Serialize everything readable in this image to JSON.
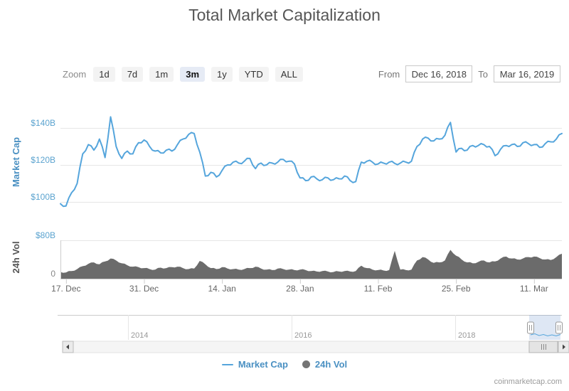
{
  "title": "Total Market Capitalization",
  "watermark": "coinmarketcap.com",
  "toolbar": {
    "zoom_label": "Zoom",
    "buttons": [
      "1d",
      "7d",
      "1m",
      "3m",
      "1y",
      "YTD",
      "ALL"
    ],
    "selected_button": "3m",
    "from_label": "From",
    "from_value": "Dec 16, 2018",
    "to_label": "To",
    "to_value": "Mar 16, 2019"
  },
  "legend": {
    "items": [
      {
        "label": "Market Cap",
        "marker": "line",
        "color": "#55a5dc"
      },
      {
        "label": "24h Vol",
        "marker": "circle",
        "color": "#757575"
      }
    ]
  },
  "navigator": {
    "year_labels": [
      "2014",
      "2016",
      "2018"
    ]
  },
  "colors": {
    "line": "#55a5dc",
    "volume_fill": "#6b6b6b",
    "axis_label_blue": "#5ba3cf",
    "market_cap_axis_title": "#4a90c2",
    "vol_axis_title": "#555555",
    "x_label_gray": "#666666",
    "grid": "#e6e6e6",
    "nav_selection": "#5b87c8",
    "selected_zoom_bg": "#e6ebf5"
  },
  "chart_data": [
    {
      "type": "line",
      "name": "Market Cap",
      "unit": "USD billions",
      "x_start": "Dec 16, 2018",
      "x_end": "Mar 16, 2019",
      "x_step": "1 day",
      "ylabel": "Market Cap",
      "ylim": [
        95,
        150
      ],
      "yticks": [
        {
          "label": "$100B",
          "value": 100
        },
        {
          "label": "$120B",
          "value": 120
        },
        {
          "label": "$140B",
          "value": 140
        }
      ],
      "xticks": [
        {
          "label": "17. Dec",
          "day": 1
        },
        {
          "label": "31. Dec",
          "day": 15
        },
        {
          "label": "14. Jan",
          "day": 29
        },
        {
          "label": "28. Jan",
          "day": 43
        },
        {
          "label": "11. Feb",
          "day": 57
        },
        {
          "label": "25. Feb",
          "day": 71
        },
        {
          "label": "11. Mar",
          "day": 85
        }
      ],
      "values": [
        99,
        97.8,
        105,
        110,
        126,
        131,
        128,
        134,
        124,
        146,
        130,
        123.5,
        127.5,
        126,
        132,
        133.5,
        130,
        127.5,
        126.5,
        128,
        127.5,
        131,
        134,
        136.5,
        137,
        127,
        114,
        116,
        113.5,
        117,
        120,
        121.5,
        121,
        122,
        123.5,
        118,
        121,
        120,
        121,
        121.5,
        123,
        122,
        120.5,
        113,
        111.5,
        113.5,
        112.5,
        112,
        113,
        112,
        112.5,
        114,
        111.5,
        111,
        121.5,
        122,
        121.5,
        120.5,
        121,
        121.5,
        120.8,
        121,
        121.5,
        122,
        130,
        134,
        134.5,
        133,
        134,
        136,
        143,
        127,
        129,
        128,
        130.5,
        130.5,
        131,
        130,
        125,
        128.5,
        130.5,
        131,
        130,
        132,
        131.5,
        131,
        129.5,
        131.5,
        132.5,
        134,
        137
      ]
    },
    {
      "type": "area",
      "name": "24h Vol",
      "unit": "USD billions",
      "x_start": "Dec 16, 2018",
      "x_end": "Mar 16, 2019",
      "x_step": "1 day",
      "ylabel": "24h Vol",
      "ylim": [
        0,
        80
      ],
      "yticks": [
        {
          "label": "0",
          "value": 0
        },
        {
          "label": "$80B",
          "value": 80
        }
      ],
      "values": [
        14,
        13,
        16,
        20,
        26,
        31,
        34,
        30,
        36,
        42,
        38,
        32,
        28,
        25,
        24,
        22,
        20,
        19,
        23,
        22,
        24,
        25,
        22,
        20,
        21,
        37,
        30,
        22,
        20,
        24,
        21,
        20,
        19,
        20,
        22,
        25,
        21,
        19,
        18,
        21,
        20,
        19,
        18,
        19,
        18,
        16,
        15,
        16,
        15,
        14,
        15,
        16,
        15,
        16,
        27,
        22,
        19,
        18,
        17,
        18,
        58,
        19,
        18,
        19,
        38,
        45,
        40,
        33,
        34,
        38,
        60,
        48,
        40,
        34,
        32,
        35,
        38,
        34,
        36,
        42,
        46,
        42,
        40,
        42,
        45,
        46,
        43,
        40,
        39,
        45,
        52
      ]
    }
  ]
}
